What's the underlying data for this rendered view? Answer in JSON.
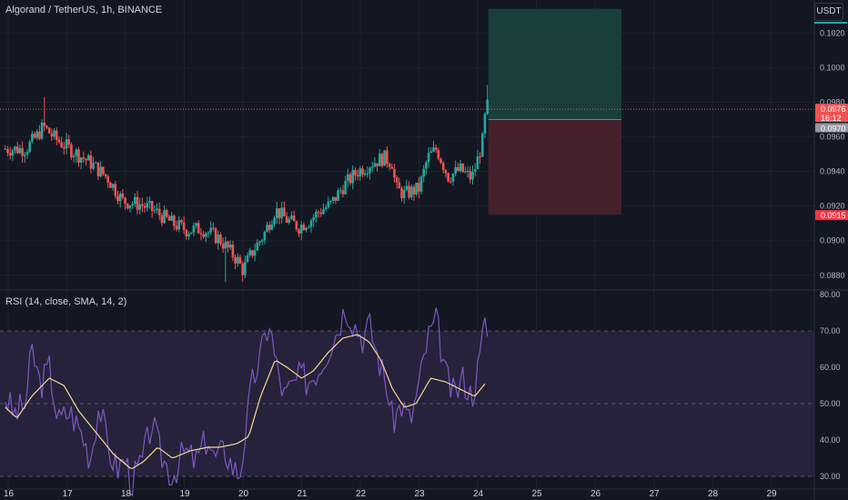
{
  "header": {
    "symbol_title": "Algorand / TetherUS, 1h, BINANCE"
  },
  "price_scale": {
    "unit_label": "USDT"
  },
  "colors": {
    "background": "#131722",
    "grid": "#1e222d",
    "up": "#26a69a",
    "down": "#ef5350",
    "rsi_line": "#7e57c2",
    "rsi_sma": "#f7d794",
    "rsi_band": "#2a2540",
    "target_zone": "#19403d",
    "stop_zone": "#47222b",
    "price_line": "#ef5350",
    "text": "#d1d4dc",
    "muted_text": "#b2b5be"
  },
  "chart_data": [
    {
      "type": "candlestick",
      "title": "Algorand / TetherUS, 1h, BINANCE",
      "yunit": "USDT",
      "ylim": [
        0.0872,
        0.1037
      ],
      "y_ticks": [
        "0.0880",
        "0.0900",
        "0.0920",
        "0.0940",
        "0.0960",
        "0.0980",
        "0.1000",
        "0.1020"
      ],
      "x_ticks": [
        "16",
        "17",
        "18",
        "19",
        "20",
        "21",
        "22",
        "23",
        "24",
        "25",
        "26",
        "27",
        "28",
        "29"
      ],
      "x_range_days": [
        15.95,
        29.5
      ],
      "grid": true,
      "price_path": {
        "step_days": 0.0417,
        "start_day": 15.95,
        "end_day": 24.17,
        "anchors": [
          [
            15.95,
            0.0953
          ],
          [
            16.3,
            0.0953
          ],
          [
            16.5,
            0.0961
          ],
          [
            16.6,
            0.0966
          ],
          [
            16.8,
            0.0959
          ],
          [
            17.05,
            0.0953
          ],
          [
            17.4,
            0.0945
          ],
          [
            17.7,
            0.0936
          ],
          [
            17.95,
            0.0923
          ],
          [
            18.25,
            0.0921
          ],
          [
            18.5,
            0.0917
          ],
          [
            18.8,
            0.091
          ],
          [
            19.05,
            0.0906
          ],
          [
            19.3,
            0.0907
          ],
          [
            19.6,
            0.0901
          ],
          [
            19.9,
            0.0889
          ],
          [
            20.0,
            0.0883
          ],
          [
            20.15,
            0.0893
          ],
          [
            20.35,
            0.0903
          ],
          [
            20.55,
            0.0918
          ],
          [
            20.75,
            0.0912
          ],
          [
            20.95,
            0.0908
          ],
          [
            21.15,
            0.0912
          ],
          [
            21.3,
            0.0917
          ],
          [
            21.5,
            0.0921
          ],
          [
            21.7,
            0.0931
          ],
          [
            21.95,
            0.094
          ],
          [
            22.2,
            0.0945
          ],
          [
            22.4,
            0.0948
          ],
          [
            22.55,
            0.0945
          ],
          [
            22.6,
            0.093
          ],
          [
            22.75,
            0.0927
          ],
          [
            23.0,
            0.093
          ],
          [
            23.15,
            0.0948
          ],
          [
            23.3,
            0.0953
          ],
          [
            23.5,
            0.0937
          ],
          [
            23.7,
            0.0941
          ],
          [
            23.9,
            0.0936
          ],
          [
            24.0,
            0.0947
          ],
          [
            24.1,
            0.096
          ],
          [
            24.15,
            0.0983
          ],
          [
            24.17,
            0.0976
          ]
        ],
        "wick_spikes": [
          [
            16.6,
            0.0983
          ],
          [
            19.7,
            0.0876
          ],
          [
            24.17,
            0.099
          ]
        ]
      },
      "current_price": 0.0976,
      "position": {
        "start_day": 24.18,
        "end_day": 26.45,
        "entry": 0.097,
        "target": 0.1034,
        "stop": 0.0915
      },
      "labels": {
        "last_price": "0.0976",
        "countdown": "16:12",
        "entry_price": "0.0970",
        "stop_price": "0.0915"
      }
    },
    {
      "type": "line",
      "title": "RSI (14, close, SMA, 14, 2)",
      "ylim": [
        26.5,
        81
      ],
      "y_ticks": [
        "30.00",
        "40.00",
        "50.00",
        "60.00",
        "70.00",
        "80.00"
      ],
      "band": [
        30,
        70
      ],
      "midline": 50,
      "series": [
        {
          "name": "RSI",
          "anchors": [
            [
              15.95,
              52
            ],
            [
              16.1,
              47
            ],
            [
              16.3,
              50
            ],
            [
              16.4,
              65
            ],
            [
              16.55,
              55
            ],
            [
              16.7,
              60
            ],
            [
              16.85,
              45
            ],
            [
              17.05,
              48
            ],
            [
              17.25,
              42
            ],
            [
              17.4,
              35
            ],
            [
              17.55,
              50
            ],
            [
              17.7,
              38
            ],
            [
              17.85,
              32
            ],
            [
              18.0,
              35
            ],
            [
              18.1,
              28
            ],
            [
              18.3,
              35
            ],
            [
              18.45,
              45
            ],
            [
              18.6,
              36
            ],
            [
              18.8,
              30
            ],
            [
              19.0,
              37
            ],
            [
              19.2,
              34
            ],
            [
              19.4,
              41
            ],
            [
              19.5,
              35
            ],
            [
              19.7,
              37
            ],
            [
              19.85,
              32
            ],
            [
              19.95,
              31
            ],
            [
              20.05,
              43
            ],
            [
              20.15,
              55
            ],
            [
              20.3,
              63
            ],
            [
              20.45,
              73
            ],
            [
              20.55,
              62
            ],
            [
              20.7,
              52
            ],
            [
              20.85,
              55
            ],
            [
              21.0,
              58
            ],
            [
              21.1,
              56
            ],
            [
              21.3,
              60
            ],
            [
              21.45,
              65
            ],
            [
              21.6,
              70
            ],
            [
              21.75,
              77
            ],
            [
              21.9,
              72
            ],
            [
              22.05,
              68
            ],
            [
              22.15,
              72
            ],
            [
              22.3,
              63
            ],
            [
              22.45,
              55
            ],
            [
              22.55,
              45
            ],
            [
              22.7,
              50
            ],
            [
              22.85,
              45
            ],
            [
              23.0,
              55
            ],
            [
              23.15,
              68
            ],
            [
              23.3,
              73
            ],
            [
              23.45,
              58
            ],
            [
              23.6,
              52
            ],
            [
              23.75,
              57
            ],
            [
              23.9,
              52
            ],
            [
              24.05,
              63
            ],
            [
              24.12,
              75
            ],
            [
              24.17,
              68
            ]
          ]
        },
        {
          "name": "SMA",
          "anchors": [
            [
              15.95,
              49
            ],
            [
              16.15,
              46
            ],
            [
              16.4,
              52
            ],
            [
              16.7,
              57
            ],
            [
              16.95,
              55
            ],
            [
              17.2,
              48
            ],
            [
              17.5,
              42
            ],
            [
              17.8,
              36
            ],
            [
              18.1,
              32
            ],
            [
              18.3,
              34
            ],
            [
              18.55,
              38
            ],
            [
              18.8,
              35
            ],
            [
              19.1,
              37
            ],
            [
              19.4,
              38
            ],
            [
              19.6,
              38
            ],
            [
              19.9,
              39
            ],
            [
              20.1,
              41
            ],
            [
              20.3,
              52
            ],
            [
              20.55,
              62
            ],
            [
              20.75,
              60
            ],
            [
              21.0,
              57
            ],
            [
              21.2,
              59
            ],
            [
              21.45,
              64
            ],
            [
              21.7,
              68
            ],
            [
              21.95,
              69
            ],
            [
              22.15,
              67
            ],
            [
              22.35,
              62
            ],
            [
              22.55,
              54
            ],
            [
              22.75,
              49
            ],
            [
              22.95,
              50
            ],
            [
              23.2,
              57
            ],
            [
              23.45,
              56
            ],
            [
              23.7,
              54
            ],
            [
              23.95,
              52
            ],
            [
              24.15,
              56
            ]
          ]
        }
      ]
    }
  ]
}
